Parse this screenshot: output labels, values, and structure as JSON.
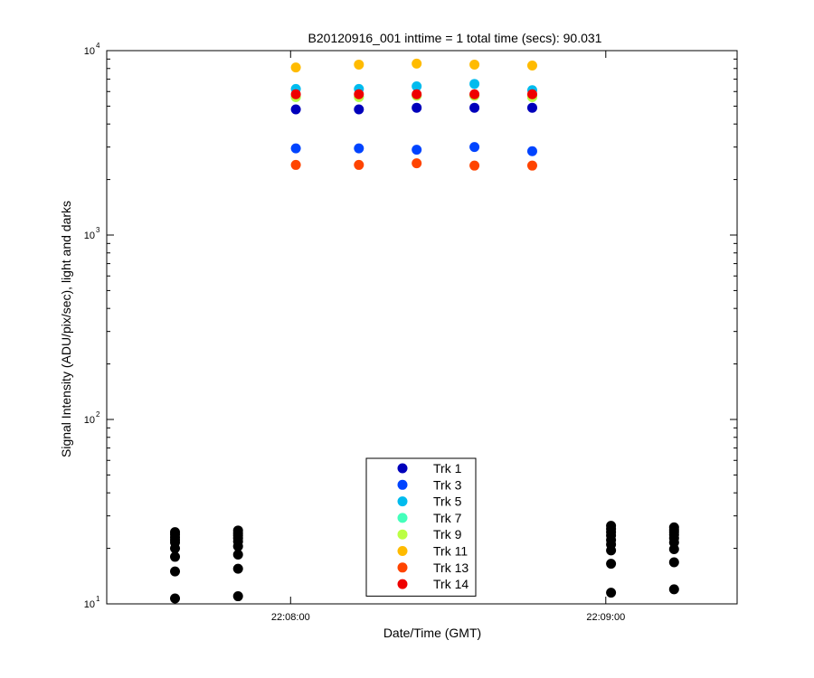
{
  "chart_data": {
    "type": "scatter",
    "title": "B20120916_001 inttime = 1 total time (secs): 90.031",
    "xlabel": "Date/Time (GMT)",
    "ylabel": "Signal Intensity (ADU/pix/sec), light and darks",
    "yscale": "log",
    "ylim": [
      10,
      10000
    ],
    "xlim": [
      "22:07:25",
      "22:09:25"
    ],
    "y_ticks": [
      {
        "base": "10",
        "exp": "1",
        "value": 10
      },
      {
        "base": "10",
        "exp": "2",
        "value": 100
      },
      {
        "base": "10",
        "exp": "3",
        "value": 1000
      },
      {
        "base": "10",
        "exp": "4",
        "value": 10000
      }
    ],
    "x_ticks": [
      {
        "label": "22:08:00",
        "value": "22:08:00"
      },
      {
        "label": "22:09:00",
        "value": "22:09:00"
      }
    ],
    "grid": false,
    "legend_position": "bottom-center",
    "light_times": [
      "22:08:01",
      "22:08:13",
      "22:08:24",
      "22:08:35",
      "22:08:46"
    ],
    "series": [
      {
        "name": "Trk 1",
        "color": "#0000bb",
        "values": [
          4800,
          4800,
          4900,
          4900,
          4900
        ]
      },
      {
        "name": "Trk 3",
        "color": "#0044ff",
        "values": [
          2950,
          2950,
          2900,
          3000,
          2850
        ]
      },
      {
        "name": "Trk 5",
        "color": "#00bbee",
        "values": [
          6200,
          6200,
          6400,
          6600,
          6100
        ]
      },
      {
        "name": "Trk 7",
        "color": "#44ffbb",
        "values": [
          5600,
          5600,
          5700,
          5700,
          5600
        ]
      },
      {
        "name": "Trk 9",
        "color": "#bbff44",
        "values": [
          5600,
          5600,
          5700,
          5700,
          5600
        ]
      },
      {
        "name": "Trk 11",
        "color": "#ffbb00",
        "values": [
          8100,
          8400,
          8500,
          8400,
          8300
        ]
      },
      {
        "name": "Trk 13",
        "color": "#ff4400",
        "values": [
          2400,
          2400,
          2450,
          2380,
          2380
        ]
      },
      {
        "name": "Trk 14",
        "color": "#ee0000",
        "values": [
          5800,
          5800,
          5800,
          5800,
          5800
        ]
      }
    ],
    "darks": {
      "color": "#000000",
      "groups": [
        {
          "time": "22:07:38",
          "values": [
            24.5,
            23.8,
            23.0,
            22.2,
            21.5,
            20.0,
            18.0,
            15.0,
            10.7
          ]
        },
        {
          "time": "22:07:50",
          "values": [
            25.0,
            24.2,
            23.5,
            22.7,
            21.8,
            20.5,
            18.5,
            15.5,
            11.0
          ]
        },
        {
          "time": "22:09:01",
          "values": [
            26.5,
            25.5,
            24.5,
            23.5,
            22.2,
            21.0,
            19.5,
            16.5,
            11.5
          ]
        },
        {
          "time": "22:09:13",
          "values": [
            26.0,
            25.2,
            24.5,
            23.7,
            22.7,
            21.5,
            19.8,
            16.8,
            12.0
          ]
        }
      ]
    }
  }
}
